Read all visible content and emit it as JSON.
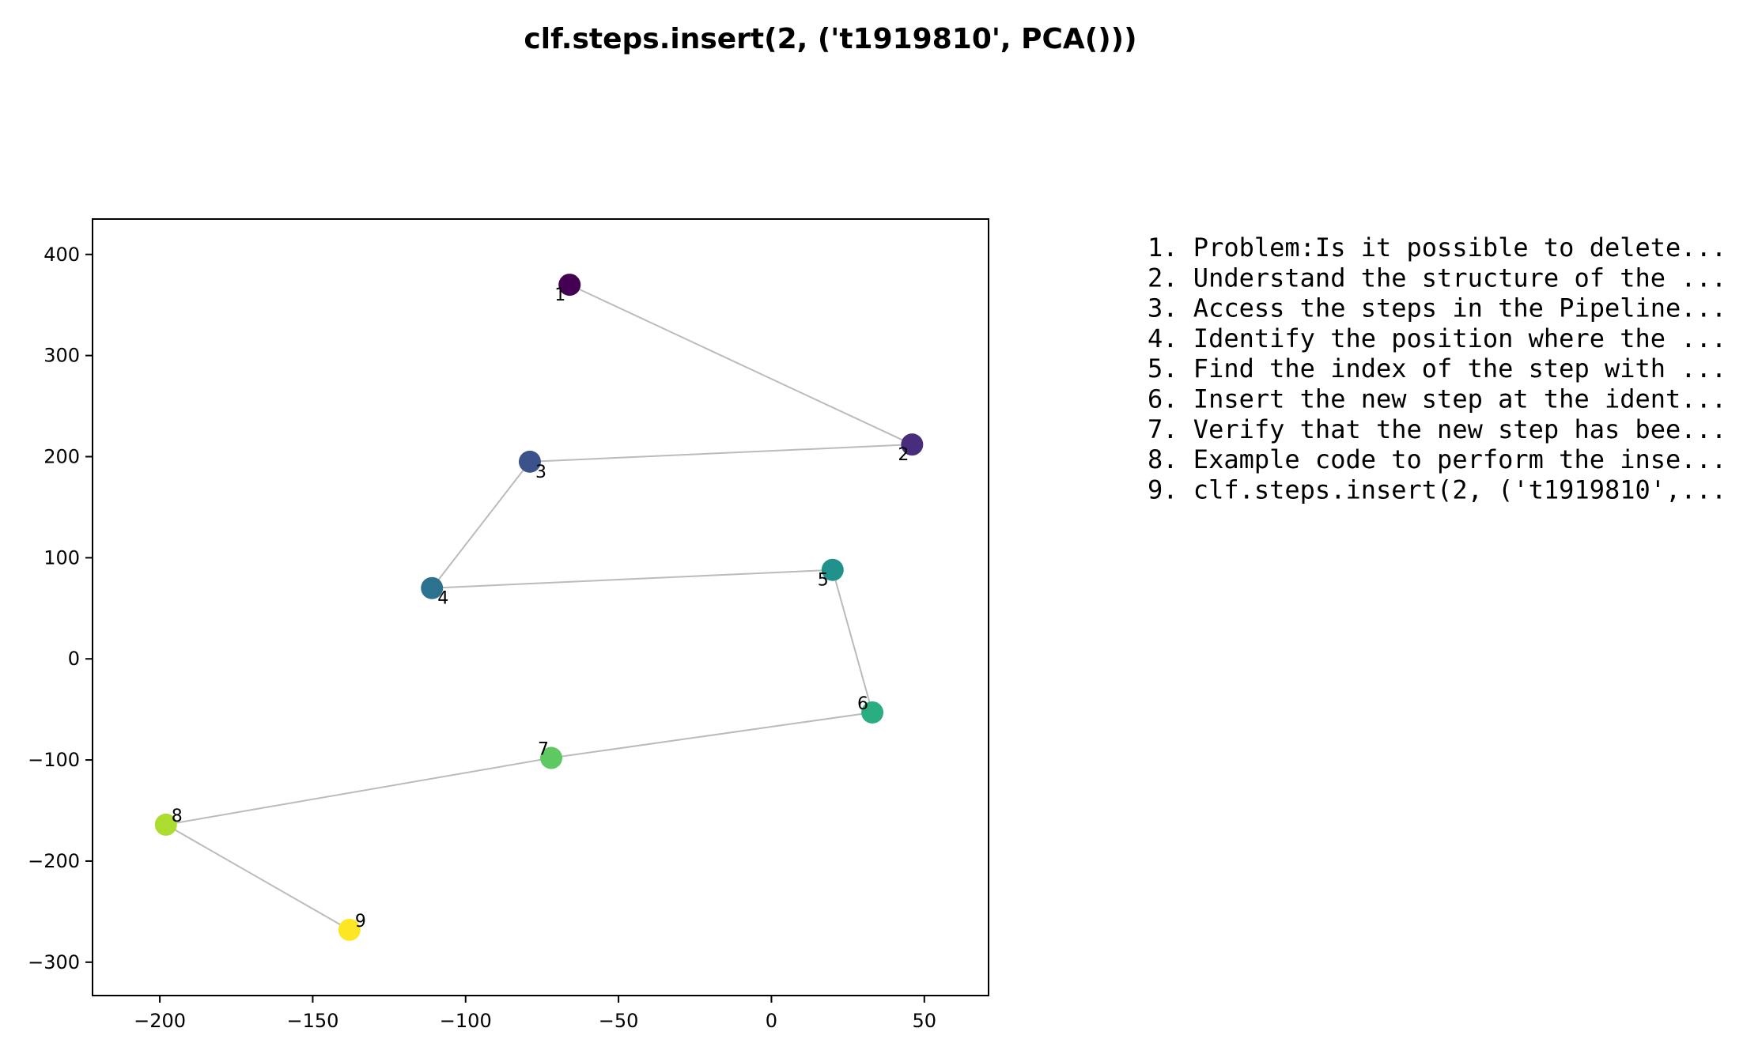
{
  "chart_data": {
    "type": "scatter",
    "title": "clf.steps.insert(2, ('t1919810', PCA()))",
    "xlabel": "",
    "ylabel": "",
    "xlim": [
      -222,
      71
    ],
    "ylim": [
      -333,
      435
    ],
    "x_ticks": [
      -200,
      -150,
      -100,
      -50,
      0,
      50
    ],
    "x_tick_labels": [
      "−200",
      "−150",
      "−100",
      "−50",
      "0",
      "50"
    ],
    "y_ticks": [
      -300,
      -200,
      -100,
      0,
      100,
      200,
      300,
      400
    ],
    "y_tick_labels": [
      "−300",
      "−200",
      "−100",
      "0",
      "100",
      "200",
      "300",
      "400"
    ],
    "grid": false,
    "connect_points": true,
    "line_color": "#bbbbbb",
    "points": [
      {
        "label": "1",
        "x": -66,
        "y": 370,
        "color": "#440154"
      },
      {
        "label": "2",
        "x": 46,
        "y": 212,
        "color": "#472d7b"
      },
      {
        "label": "3",
        "x": -79,
        "y": 195,
        "color": "#3b528b"
      },
      {
        "label": "4",
        "x": -111,
        "y": 70,
        "color": "#2c728e"
      },
      {
        "label": "5",
        "x": 20,
        "y": 88,
        "color": "#21918c"
      },
      {
        "label": "6",
        "x": 33,
        "y": -53,
        "color": "#28ae80"
      },
      {
        "label": "7",
        "x": -72,
        "y": -98,
        "color": "#5ec962"
      },
      {
        "label": "8",
        "x": -198,
        "y": -164,
        "color": "#addc30"
      },
      {
        "label": "9",
        "x": -138,
        "y": -268,
        "color": "#fde725"
      }
    ],
    "legend_lines": [
      "1. Problem:Is it possible to delete...",
      "2. Understand the structure of the ...",
      "3. Access the steps in the Pipeline...",
      "4. Identify the position where the ...",
      "5. Find the index of the step with ...",
      "6. Insert the new step at the ident...",
      "7. Verify that the new step has bee...",
      "8. Example code to perform the inse...",
      "9. clf.steps.insert(2, ('t1919810',..."
    ]
  }
}
